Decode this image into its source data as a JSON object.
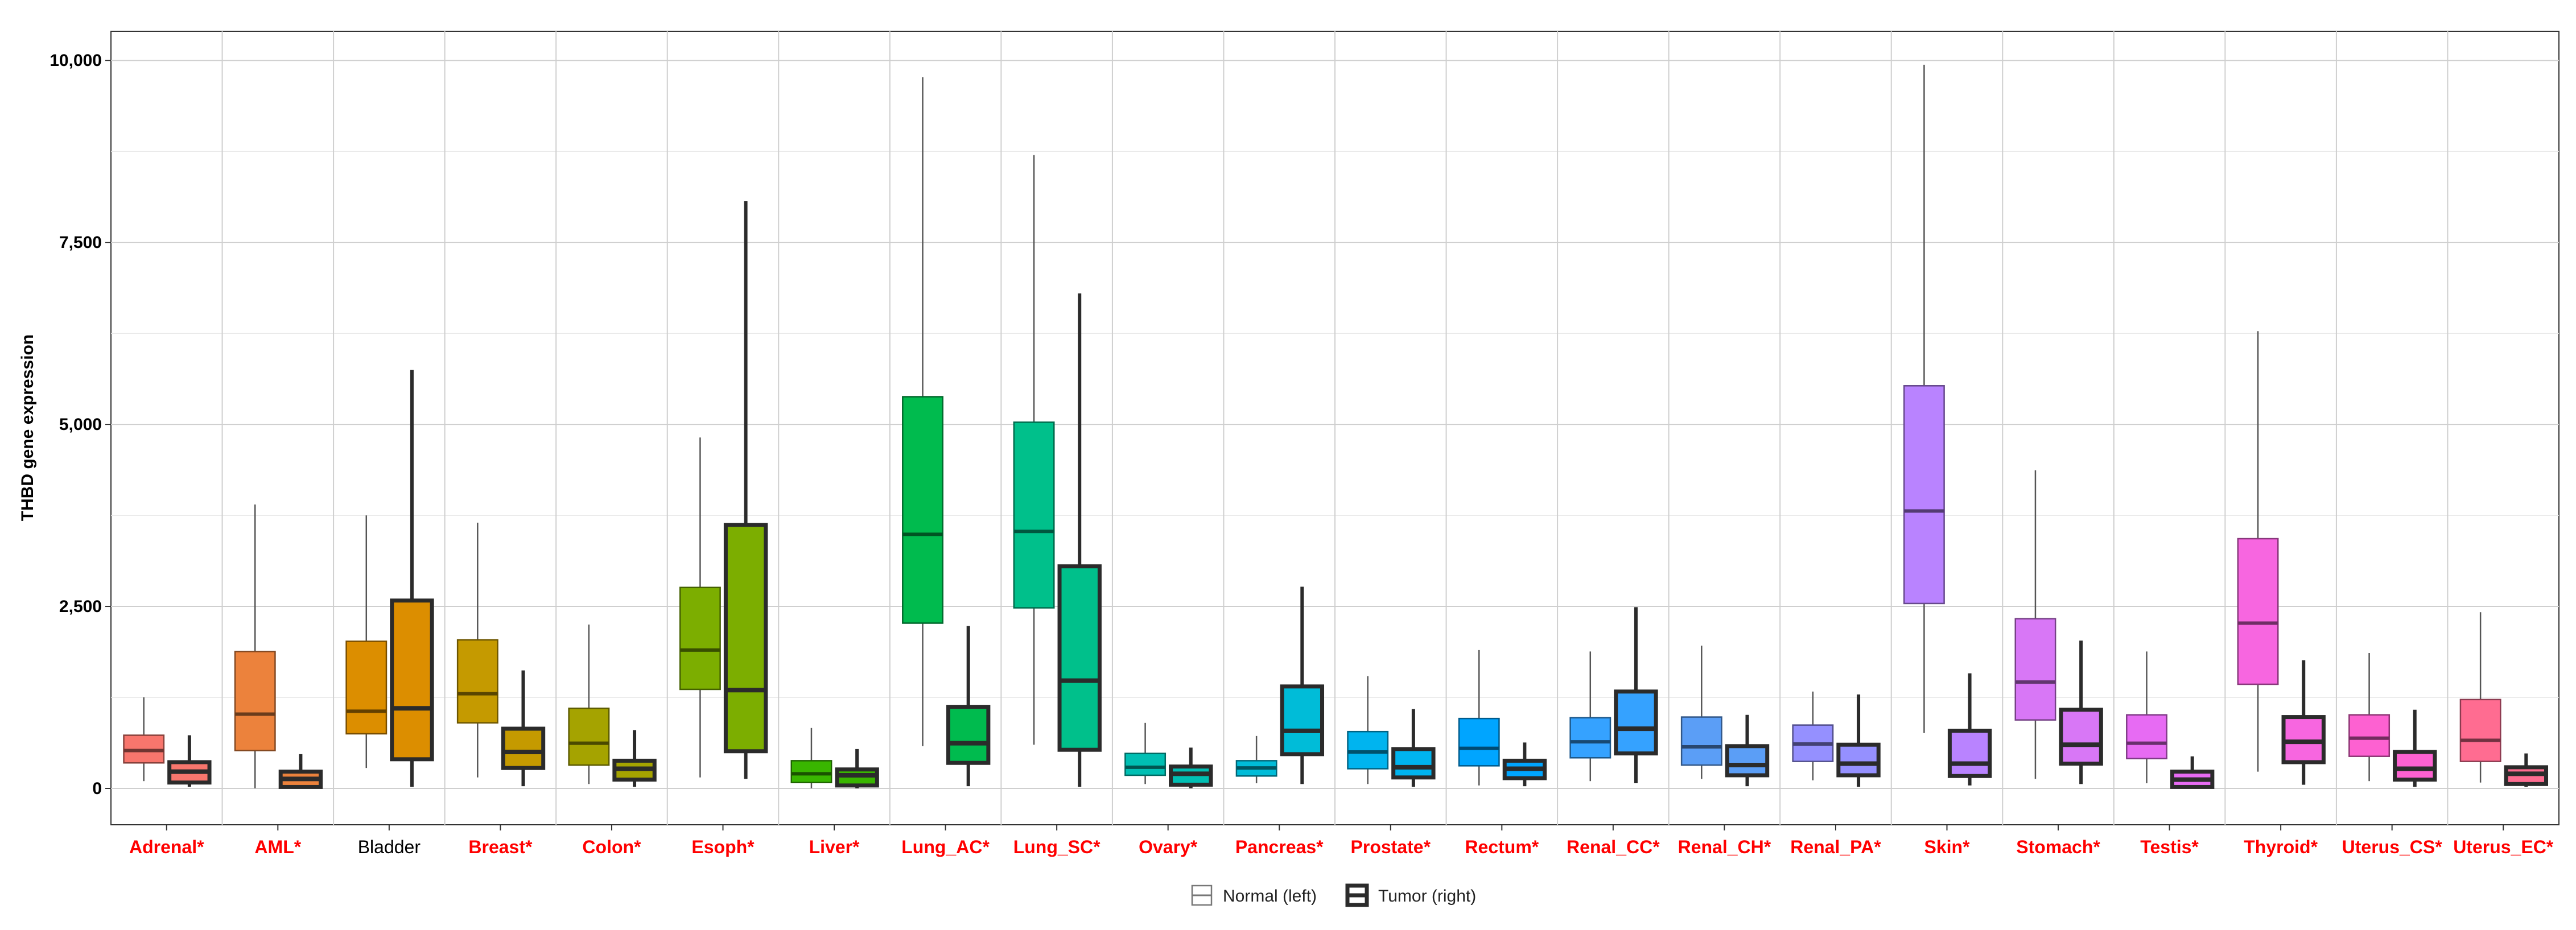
{
  "chart_data": {
    "type": "box",
    "title": "",
    "xlabel": "",
    "ylabel": "THBD gene expression",
    "ylim": [
      -500,
      10400
    ],
    "yticks": [
      0,
      2500,
      5000,
      7500,
      10000
    ],
    "ytick_labels": [
      "0",
      "2,500",
      "5,000",
      "7,500",
      "10,000"
    ],
    "grid": true,
    "legend_position": "bottom",
    "legend": {
      "entries": [
        {
          "label": "Normal (left)",
          "style": "thin"
        },
        {
          "label": "Tumor (right)",
          "style": "thick"
        }
      ]
    },
    "highlight_color": "#ff0000",
    "categories": [
      {
        "label": "Adrenal*",
        "highlight": true,
        "color": "#f8766d",
        "normal": {
          "whisker_low": 100,
          "q1": 350,
          "median": 520,
          "q3": 730,
          "whisker_high": 1250
        },
        "tumor": {
          "whisker_low": 20,
          "q1": 80,
          "median": 230,
          "q3": 360,
          "whisker_high": 730
        }
      },
      {
        "label": "AML*",
        "highlight": true,
        "color": "#ec823c",
        "normal": {
          "whisker_low": 0,
          "q1": 520,
          "median": 1020,
          "q3": 1880,
          "whisker_high": 3900
        },
        "tumor": {
          "whisker_low": 0,
          "q1": 20,
          "median": 130,
          "q3": 230,
          "whisker_high": 470
        }
      },
      {
        "label": "Bladder",
        "highlight": false,
        "color": "#dc8e00",
        "normal": {
          "whisker_low": 280,
          "q1": 750,
          "median": 1060,
          "q3": 2020,
          "whisker_high": 3750
        },
        "tumor": {
          "whisker_low": 20,
          "q1": 400,
          "median": 1100,
          "q3": 2580,
          "whisker_high": 5750
        }
      },
      {
        "label": "Breast*",
        "highlight": true,
        "color": "#c59a00",
        "normal": {
          "whisker_low": 150,
          "q1": 900,
          "median": 1300,
          "q3": 2040,
          "whisker_high": 3650
        },
        "tumor": {
          "whisker_low": 30,
          "q1": 280,
          "median": 500,
          "q3": 820,
          "whisker_high": 1620
        }
      },
      {
        "label": "Colon*",
        "highlight": true,
        "color": "#a5a300",
        "normal": {
          "whisker_low": 60,
          "q1": 320,
          "median": 620,
          "q3": 1100,
          "whisker_high": 2250
        },
        "tumor": {
          "whisker_low": 20,
          "q1": 120,
          "median": 270,
          "q3": 380,
          "whisker_high": 800
        }
      },
      {
        "label": "Esoph*",
        "highlight": true,
        "color": "#7cae00",
        "normal": {
          "whisker_low": 150,
          "q1": 1360,
          "median": 1900,
          "q3": 2760,
          "whisker_high": 4820
        },
        "tumor": {
          "whisker_low": 130,
          "q1": 510,
          "median": 1350,
          "q3": 3620,
          "whisker_high": 8070
        }
      },
      {
        "label": "Liver*",
        "highlight": true,
        "color": "#39b600",
        "normal": {
          "whisker_low": 0,
          "q1": 80,
          "median": 200,
          "q3": 380,
          "whisker_high": 830
        },
        "tumor": {
          "whisker_low": 0,
          "q1": 40,
          "median": 180,
          "q3": 260,
          "whisker_high": 540
        }
      },
      {
        "label": "Lung_AC*",
        "highlight": true,
        "color": "#00bb4e",
        "normal": {
          "whisker_low": 580,
          "q1": 2270,
          "median": 3490,
          "q3": 5380,
          "whisker_high": 9770
        },
        "tumor": {
          "whisker_low": 30,
          "q1": 350,
          "median": 620,
          "q3": 1120,
          "whisker_high": 2230
        }
      },
      {
        "label": "Lung_SC*",
        "highlight": true,
        "color": "#00c08b",
        "normal": {
          "whisker_low": 600,
          "q1": 2480,
          "median": 3530,
          "q3": 5030,
          "whisker_high": 8700
        },
        "tumor": {
          "whisker_low": 20,
          "q1": 530,
          "median": 1480,
          "q3": 3050,
          "whisker_high": 6800
        }
      },
      {
        "label": "Ovary*",
        "highlight": true,
        "color": "#00bfb3",
        "normal": {
          "whisker_low": 60,
          "q1": 180,
          "median": 290,
          "q3": 480,
          "whisker_high": 900
        },
        "tumor": {
          "whisker_low": 0,
          "q1": 50,
          "median": 200,
          "q3": 300,
          "whisker_high": 560
        }
      },
      {
        "label": "Pancreas*",
        "highlight": true,
        "color": "#00bcd8",
        "normal": {
          "whisker_low": 70,
          "q1": 170,
          "median": 280,
          "q3": 380,
          "whisker_high": 720
        },
        "tumor": {
          "whisker_low": 60,
          "q1": 470,
          "median": 790,
          "q3": 1400,
          "whisker_high": 2770
        }
      },
      {
        "label": "Prostate*",
        "highlight": true,
        "color": "#00b4ef",
        "normal": {
          "whisker_low": 60,
          "q1": 270,
          "median": 500,
          "q3": 780,
          "whisker_high": 1540
        },
        "tumor": {
          "whisker_low": 20,
          "q1": 150,
          "median": 290,
          "q3": 540,
          "whisker_high": 1090
        }
      },
      {
        "label": "Rectum*",
        "highlight": true,
        "color": "#00a5ff",
        "normal": {
          "whisker_low": 40,
          "q1": 310,
          "median": 550,
          "q3": 960,
          "whisker_high": 1900
        },
        "tumor": {
          "whisker_low": 30,
          "q1": 140,
          "median": 270,
          "q3": 380,
          "whisker_high": 630
        }
      },
      {
        "label": "Renal_CC*",
        "highlight": true,
        "color": "#35a2ff",
        "normal": {
          "whisker_low": 100,
          "q1": 420,
          "median": 640,
          "q3": 970,
          "whisker_high": 1880
        },
        "tumor": {
          "whisker_low": 70,
          "q1": 480,
          "median": 820,
          "q3": 1330,
          "whisker_high": 2490
        }
      },
      {
        "label": "Renal_CH*",
        "highlight": true,
        "color": "#5b9ef6",
        "normal": {
          "whisker_low": 130,
          "q1": 320,
          "median": 570,
          "q3": 980,
          "whisker_high": 1960
        },
        "tumor": {
          "whisker_low": 30,
          "q1": 180,
          "median": 320,
          "q3": 580,
          "whisker_high": 1010
        }
      },
      {
        "label": "Renal_PA*",
        "highlight": true,
        "color": "#9590ff",
        "normal": {
          "whisker_low": 110,
          "q1": 370,
          "median": 610,
          "q3": 870,
          "whisker_high": 1330
        },
        "tumor": {
          "whisker_low": 20,
          "q1": 180,
          "median": 340,
          "q3": 600,
          "whisker_high": 1290
        }
      },
      {
        "label": "Skin*",
        "highlight": true,
        "color": "#b983ff",
        "normal": {
          "whisker_low": 760,
          "q1": 2540,
          "median": 3810,
          "q3": 5530,
          "whisker_high": 9940
        },
        "tumor": {
          "whisker_low": 40,
          "q1": 170,
          "median": 340,
          "q3": 790,
          "whisker_high": 1580
        }
      },
      {
        "label": "Stomach*",
        "highlight": true,
        "color": "#d877f6",
        "normal": {
          "whisker_low": 130,
          "q1": 940,
          "median": 1460,
          "q3": 2330,
          "whisker_high": 4370
        },
        "tumor": {
          "whisker_low": 60,
          "q1": 340,
          "median": 600,
          "q3": 1080,
          "whisker_high": 2030
        }
      },
      {
        "label": "Testis*",
        "highlight": true,
        "color": "#e76bf3",
        "normal": {
          "whisker_low": 70,
          "q1": 410,
          "median": 620,
          "q3": 1010,
          "whisker_high": 1880
        },
        "tumor": {
          "whisker_low": 0,
          "q1": 20,
          "median": 120,
          "q3": 230,
          "whisker_high": 440
        }
      },
      {
        "label": "Thyroid*",
        "highlight": true,
        "color": "#f766e0",
        "normal": {
          "whisker_low": 230,
          "q1": 1430,
          "median": 2270,
          "q3": 3430,
          "whisker_high": 6280
        },
        "tumor": {
          "whisker_low": 50,
          "q1": 360,
          "median": 640,
          "q3": 980,
          "whisker_high": 1760
        }
      },
      {
        "label": "Uterus_CS*",
        "highlight": true,
        "color": "#fd61d1",
        "normal": {
          "whisker_low": 100,
          "q1": 440,
          "median": 690,
          "q3": 1010,
          "whisker_high": 1860
        },
        "tumor": {
          "whisker_low": 20,
          "q1": 120,
          "median": 270,
          "q3": 500,
          "whisker_high": 1080
        }
      },
      {
        "label": "Uterus_EC*",
        "highlight": true,
        "color": "#ff6c91",
        "normal": {
          "whisker_low": 80,
          "q1": 370,
          "median": 660,
          "q3": 1220,
          "whisker_high": 2420
        },
        "tumor": {
          "whisker_low": 20,
          "q1": 60,
          "median": 200,
          "q3": 290,
          "whisker_high": 480
        }
      }
    ]
  }
}
